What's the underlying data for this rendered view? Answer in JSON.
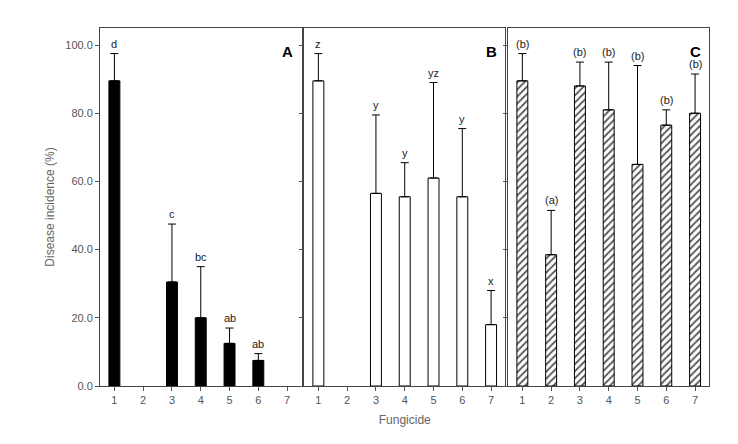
{
  "chart_data": [
    {
      "type": "bar",
      "title": "A",
      "y_label": "Disease incidence (%)",
      "x": [
        1,
        2,
        3,
        4,
        5,
        6,
        7
      ],
      "values": [
        89.5,
        null,
        30.5,
        20.0,
        12.5,
        7.5,
        null
      ],
      "errors": [
        8.0,
        null,
        17.0,
        15.0,
        4.5,
        2.0,
        null
      ],
      "annotations": [
        "d",
        null,
        "c",
        "bc",
        "ab",
        "ab",
        null
      ],
      "color": "#000000",
      "xlim": [
        0.5,
        7.5
      ],
      "xticks": [
        1,
        2,
        3,
        4,
        5,
        6,
        7
      ],
      "ylim": [
        0,
        105
      ],
      "yticks": [
        {
          "value": 0,
          "label": "0.0"
        },
        {
          "value": 20,
          "label": "20.0"
        },
        {
          "value": 40,
          "label": "40.0"
        },
        {
          "value": 60,
          "label": "60.0"
        },
        {
          "value": 80,
          "label": "80.0"
        },
        {
          "value": 100,
          "label": "100.0"
        }
      ],
      "grid": false
    },
    {
      "type": "bar",
      "title": "B",
      "x_label": "Fungicide",
      "x": [
        1,
        2,
        3,
        4,
        5,
        6,
        7
      ],
      "values": [
        89.5,
        null,
        56.5,
        55.5,
        61.0,
        55.5,
        18.0
      ],
      "errors": [
        8.0,
        null,
        23.0,
        10.0,
        28.0,
        20.0,
        10.0
      ],
      "annotations": [
        "z",
        null,
        "y",
        "y",
        "yz",
        "y",
        "x"
      ],
      "color": "#ffffff",
      "xlim": [
        0.5,
        7.5
      ],
      "xticks": [
        1,
        2,
        3,
        4,
        5,
        6,
        7
      ],
      "ylim": [
        0,
        105
      ],
      "yticks": [
        0,
        20,
        40,
        60,
        80,
        100
      ],
      "tick_labels": "x",
      "grid": false
    },
    {
      "type": "bar",
      "title": "C",
      "x": [
        1,
        2,
        3,
        4,
        5,
        6,
        7
      ],
      "values": [
        89.5,
        38.5,
        88.0,
        81.0,
        65.0,
        76.5,
        80.0
      ],
      "errors": [
        8.0,
        13.0,
        7.0,
        14.0,
        29.0,
        4.5,
        11.5
      ],
      "annotations": [
        "(b)",
        "(a)",
        "(b)",
        "(b)",
        "(b)",
        "(b)",
        "(b)"
      ],
      "color": "#9a9a9a",
      "marker": "hatch",
      "xlim": [
        0.5,
        7.5
      ],
      "xticks": [
        1,
        2,
        3,
        4,
        5,
        6,
        7
      ],
      "ylim": [
        0,
        105
      ],
      "yticks": [
        0,
        20,
        40,
        60,
        80,
        100
      ],
      "tick_labels": "x",
      "grid": false
    }
  ]
}
